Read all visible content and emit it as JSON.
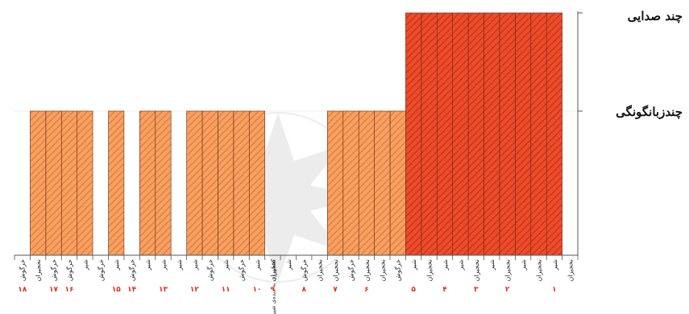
{
  "chart_data": {
    "type": "bar",
    "y_levels": [
      "چندزبانگونگی",
      "چند صدایی"
    ],
    "colors": {
      "bar_light": "#F8A060",
      "bar_dark": "#EE4B2B",
      "hatch_light": "#C96A32",
      "hatch_dark": "#A82810",
      "index_red": "#E0301E",
      "watermark": "#C9C9C9"
    },
    "bars": [
      {
        "label": "نخجیران",
        "level": 0,
        "group": ""
      },
      {
        "label": "شیر",
        "level": 2,
        "group": "۱"
      },
      {
        "label": "نخجیران",
        "level": 2,
        "group": ""
      },
      {
        "label": "شیر",
        "level": 2,
        "group": ""
      },
      {
        "label": "نخجیران",
        "level": 2,
        "group": "۲"
      },
      {
        "label": "شیر",
        "level": 2,
        "group": ""
      },
      {
        "label": "نخجیران",
        "level": 2,
        "group": "۳"
      },
      {
        "label": "شیر",
        "level": 2,
        "group": ""
      },
      {
        "label": "شیر",
        "level": 2,
        "group": "۴"
      },
      {
        "label": "نخجیران",
        "level": 2,
        "group": ""
      },
      {
        "label": "شیر",
        "level": 2,
        "group": "۵"
      },
      {
        "label": "خرگوش",
        "level": 1,
        "group": ""
      },
      {
        "label": "نخجیران",
        "level": 1,
        "group": ""
      },
      {
        "label": "نخجیران",
        "level": 1,
        "group": "۶"
      },
      {
        "label": "خرگوش",
        "level": 1,
        "group": ""
      },
      {
        "label": "نخجیران",
        "level": 1,
        "group": "۷"
      },
      {
        "label": "نخجیران",
        "level": 0,
        "group": ""
      },
      {
        "label": "خرگوش",
        "level": 0,
        "group": "۸"
      },
      {
        "label": "شیر",
        "level": 0,
        "group": ""
      },
      {
        "label": "نخجیران",
        "level": 0,
        "group": ""
      },
      {
        "label": "شیر",
        "level": 1,
        "group": "۱۰"
      },
      {
        "label": "خرگوش",
        "level": 1,
        "group": ""
      },
      {
        "label": "شیر",
        "level": 1,
        "group": "۱۱"
      },
      {
        "label": "خرگوش",
        "level": 1,
        "group": ""
      },
      {
        "label": "شیر",
        "level": 1,
        "group": "۱۲"
      },
      {
        "label": "شیر",
        "level": 0,
        "group": ""
      },
      {
        "label": "شیر",
        "level": 1,
        "group": "۱۳"
      },
      {
        "label": "شیر",
        "level": 1,
        "group": ""
      },
      {
        "label": "خرگوش",
        "level": 0,
        "group": "۱۴"
      },
      {
        "label": "شیر",
        "level": 1,
        "group": "۱۵"
      },
      {
        "label": "خرگوش",
        "level": 0,
        "group": ""
      },
      {
        "label": "شیر",
        "level": 1,
        "group": ""
      },
      {
        "label": "خرگوش",
        "level": 1,
        "group": "۱۶"
      },
      {
        "label": "خرگوش",
        "level": 1,
        "group": "۱۷"
      },
      {
        "label": "نخجیران",
        "level": 1,
        "group": ""
      },
      {
        "label": "خرگوش",
        "level": 0,
        "group": "۱۸"
      }
    ],
    "notes": [
      {
        "text": "کشاورزی به دیده‌ی شیر",
        "group": "۹"
      }
    ]
  }
}
